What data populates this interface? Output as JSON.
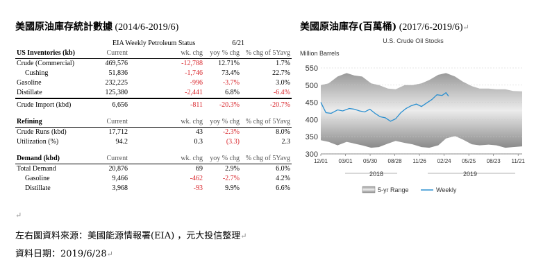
{
  "left_title": {
    "zh": "美國原油庫存統計數據",
    "en": " (2014/6-2019/6)"
  },
  "right_title": {
    "zh": "美國原油庫存(百萬桶)",
    "en": " (2017/6-2019/6)"
  },
  "table": {
    "status_title": "EIA Weekly Petroleum Status",
    "status_date": "6/21",
    "sections": [
      {
        "header": [
          "US Inventories (kb)",
          "Current",
          "wk. chg",
          "yoy % chg",
          "% chg of 5Yavg"
        ],
        "rows": [
          {
            "label": "Crude (Commercial)",
            "current": "469,576",
            "wk": "-12,788",
            "yoy": "12.71%",
            "avg": "1.7%",
            "neg": [
              true,
              false,
              false
            ]
          },
          {
            "label": "Cushing",
            "indent": true,
            "current": "51,836",
            "wk": "-1,746",
            "yoy": "73.4%",
            "avg": "22.7%",
            "neg": [
              true,
              false,
              false
            ]
          },
          {
            "label": "Gasoline",
            "current": "232,225",
            "wk": "-996",
            "yoy": "-3.7%",
            "avg": "3.0%",
            "neg": [
              true,
              true,
              false
            ]
          },
          {
            "label": "Distillate",
            "current": "125,380",
            "wk": "-2,441",
            "yoy": "6.8%",
            "avg": "-6.4%",
            "neg": [
              true,
              false,
              true
            ]
          },
          {
            "label": "Crude Import (kbd)",
            "current": "6,656",
            "wk": "-811",
            "yoy": "-20.3%",
            "avg": "-20.7%",
            "neg": [
              true,
              true,
              true
            ]
          }
        ]
      },
      {
        "header": [
          "Refining",
          "Current",
          "wk. chg",
          "yoy % chg",
          "% chg of 5Yavg"
        ],
        "rows": [
          {
            "label": "Crude Runs (kbd)",
            "current": "17,712",
            "wk": "43",
            "yoy": "-2.3%",
            "avg": "8.0%",
            "neg": [
              false,
              true,
              false
            ]
          },
          {
            "label": "Utilization (%)",
            "current": "94.2",
            "wk": "0.3",
            "yoy": "(3.3)",
            "avg": "2.3",
            "neg": [
              false,
              true,
              false
            ]
          }
        ]
      },
      {
        "header": [
          "Demand (kbd)",
          "Current",
          "wk. chg",
          "yoy % chg",
          "% chg of 5Yavg"
        ],
        "rows": [
          {
            "label": "Total Demand",
            "current": "20,876",
            "wk": "69",
            "yoy": "2.9%",
            "avg": "6.0%",
            "neg": [
              false,
              false,
              false
            ]
          },
          {
            "label": "Gasoline",
            "indent": true,
            "current": "9,466",
            "wk": "-462",
            "yoy": "-2.7%",
            "avg": "4.2%",
            "neg": [
              true,
              true,
              false
            ]
          },
          {
            "label": "Distillate",
            "indent": true,
            "current": "3,968",
            "wk": "-93",
            "yoy": "9.9%",
            "avg": "6.6%",
            "neg": [
              true,
              false,
              false
            ]
          }
        ]
      }
    ]
  },
  "chart_data": {
    "type": "area",
    "title": "U.S. Crude Oil Stocks",
    "ylabel": "Million Barrels",
    "ylim": [
      300,
      550
    ],
    "yticks": [
      300,
      350,
      400,
      450,
      500,
      550
    ],
    "xtick_labels": [
      "12/01",
      "03/01",
      "05/30",
      "08/28",
      "11/26",
      "02/24",
      "05/25",
      "08/23",
      "11/21"
    ],
    "year_labels": [
      "2018",
      "2019"
    ],
    "legend": [
      "5-yr Range",
      "Weekly"
    ],
    "x_weeks": [
      0,
      6,
      13,
      20,
      26,
      32,
      39,
      45,
      52,
      58,
      65,
      71,
      78,
      84,
      91,
      97,
      104,
      110,
      117,
      123,
      130,
      136,
      143,
      149,
      156
    ],
    "range_high": [
      500,
      505,
      525,
      535,
      528,
      525,
      505,
      500,
      490,
      488,
      500,
      500,
      505,
      515,
      530,
      535,
      525,
      510,
      497,
      490,
      490,
      488,
      488,
      483,
      482
    ],
    "range_low": [
      340,
      335,
      325,
      335,
      330,
      325,
      318,
      320,
      330,
      338,
      332,
      328,
      320,
      318,
      325,
      345,
      352,
      342,
      328,
      325,
      327,
      325,
      318,
      320,
      322
    ],
    "weekly_x": [
      0,
      4,
      8,
      13,
      17,
      22,
      26,
      30,
      34,
      38,
      42,
      46,
      50,
      54,
      58,
      62,
      66,
      70,
      74,
      78,
      82,
      86,
      90,
      94,
      97,
      99
    ],
    "weekly": [
      450,
      420,
      418,
      428,
      425,
      432,
      430,
      425,
      422,
      430,
      418,
      408,
      405,
      395,
      402,
      420,
      432,
      440,
      445,
      438,
      448,
      458,
      472,
      470,
      478,
      468
    ]
  },
  "source_text": "左右圖資料來源：美國能源情報署(EIA) ，元大投信整理",
  "date_text": "資料日期：2019/6/28",
  "colors": {
    "negative": "#d9252b",
    "weekly_line": "#2a8fd0",
    "range_fill": "#7a7a7a"
  }
}
